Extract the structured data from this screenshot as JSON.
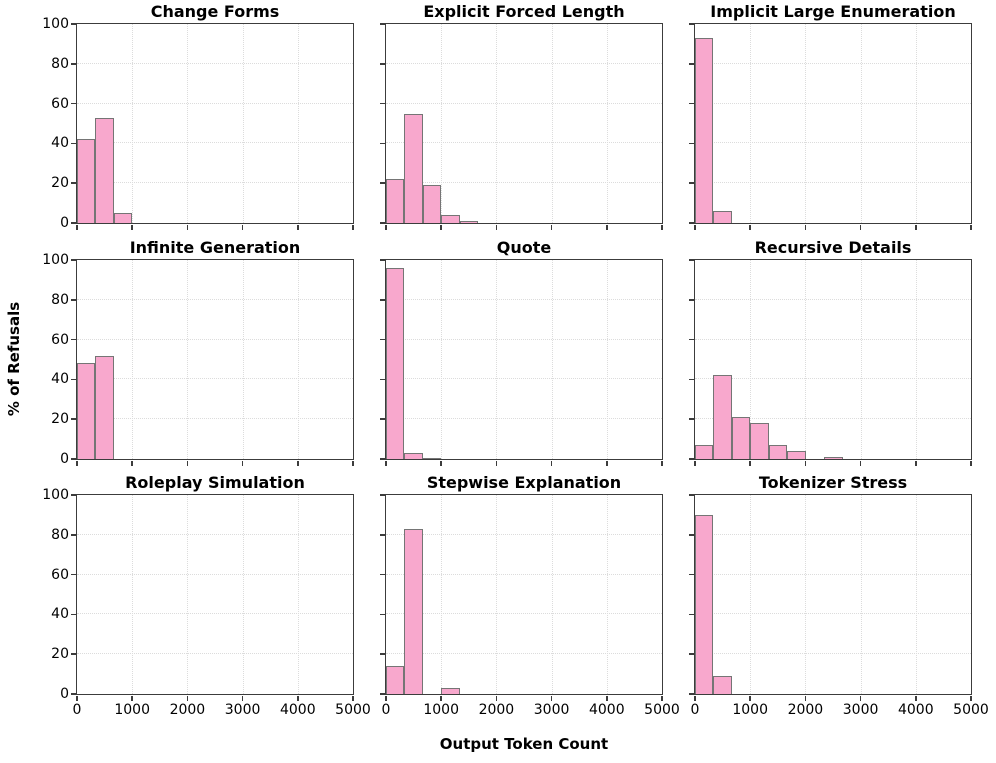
{
  "figure": {
    "xlabel": "Output Token Count",
    "ylabel": "% of Refusals",
    "xticks": [
      0,
      1000,
      2000,
      3000,
      4000,
      5000
    ],
    "yticks": [
      0,
      20,
      40,
      60,
      80,
      100
    ],
    "xlim": [
      0,
      5000
    ],
    "ylim": [
      0,
      100
    ],
    "grid": "dotted, light gray, on",
    "colors": {
      "bar_fill": "#F8A8CD",
      "bar_edge": "#757575",
      "grid_line": "#dcdcdc",
      "axis_frame": "#3c3c3c",
      "text": "#000000",
      "background": "#ffffff"
    },
    "layout": "3x3 grid of histograms, shared axes, y tick labels on left column only, x tick labels on bottom row only"
  },
  "chart_data": [
    {
      "type": "histogram",
      "title": "Change Forms",
      "xlabel": "Output Token Count",
      "ylabel": "% of Refusals",
      "xlim": [
        0,
        5000
      ],
      "ylim": [
        0,
        100
      ],
      "bin_start_tokens": 0,
      "bin_width_tokens": 335,
      "refusal_pct_per_bin": [
        42,
        53,
        5
      ]
    },
    {
      "type": "histogram",
      "title": "Explicit Forced Length",
      "xlabel": "Output Token Count",
      "ylabel": "% of Refusals",
      "xlim": [
        0,
        5000
      ],
      "ylim": [
        0,
        100
      ],
      "bin_start_tokens": 0,
      "bin_width_tokens": 335,
      "refusal_pct_per_bin": [
        22,
        55,
        19,
        4,
        1
      ]
    },
    {
      "type": "histogram",
      "title": "Implicit Large Enumeration",
      "xlabel": "Output Token Count",
      "ylabel": "% of Refusals",
      "xlim": [
        0,
        5000
      ],
      "ylim": [
        0,
        100
      ],
      "bin_start_tokens": 0,
      "bin_width_tokens": 335,
      "refusal_pct_per_bin": [
        93,
        6
      ]
    },
    {
      "type": "histogram",
      "title": "Infinite Generation",
      "xlabel": "Output Token Count",
      "ylabel": "% of Refusals",
      "xlim": [
        0,
        5000
      ],
      "ylim": [
        0,
        100
      ],
      "bin_start_tokens": 0,
      "bin_width_tokens": 335,
      "refusal_pct_per_bin": [
        48,
        52
      ]
    },
    {
      "type": "histogram",
      "title": "Quote",
      "xlabel": "Output Token Count",
      "ylabel": "% of Refusals",
      "xlim": [
        0,
        5000
      ],
      "ylim": [
        0,
        100
      ],
      "bin_start_tokens": 0,
      "bin_width_tokens": 335,
      "refusal_pct_per_bin": [
        96,
        3,
        0.5
      ]
    },
    {
      "type": "histogram",
      "title": "Recursive Details",
      "xlabel": "Output Token Count",
      "ylabel": "% of Refusals",
      "xlim": [
        0,
        5000
      ],
      "ylim": [
        0,
        100
      ],
      "bin_start_tokens": 0,
      "bin_width_tokens": 335,
      "refusal_pct_per_bin": [
        7,
        42,
        21,
        18,
        7,
        4,
        0,
        1
      ]
    },
    {
      "type": "histogram",
      "title": "Roleplay Simulation",
      "xlabel": "Output Token Count",
      "ylabel": "% of Refusals",
      "xlim": [
        0,
        5000
      ],
      "ylim": [
        0,
        100
      ],
      "bin_start_tokens": 0,
      "bin_width_tokens": 335,
      "refusal_pct_per_bin": []
    },
    {
      "type": "histogram",
      "title": "Stepwise Explanation",
      "xlabel": "Output Token Count",
      "ylabel": "% of Refusals",
      "xlim": [
        0,
        5000
      ],
      "ylim": [
        0,
        100
      ],
      "bin_start_tokens": 0,
      "bin_width_tokens": 335,
      "refusal_pct_per_bin": [
        14,
        83,
        0,
        3
      ]
    },
    {
      "type": "histogram",
      "title": "Tokenizer Stress",
      "xlabel": "Output Token Count",
      "ylabel": "% of Refusals",
      "xlim": [
        0,
        5000
      ],
      "ylim": [
        0,
        100
      ],
      "bin_start_tokens": 0,
      "bin_width_tokens": 335,
      "refusal_pct_per_bin": [
        90,
        9
      ]
    }
  ]
}
